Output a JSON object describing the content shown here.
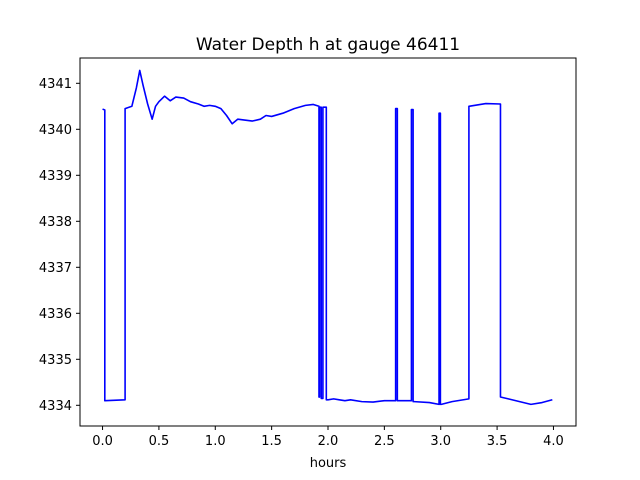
{
  "chart_data": {
    "type": "line",
    "title": "Water Depth h at gauge 46411",
    "xlabel": "hours",
    "ylabel": "",
    "xlim": [
      -0.2,
      4.2
    ],
    "ylim": [
      4333.55,
      4341.55
    ],
    "x_ticks": [
      0.0,
      0.5,
      1.0,
      1.5,
      2.0,
      2.5,
      3.0,
      3.5,
      4.0
    ],
    "x_tick_labels": [
      "0.0",
      "0.5",
      "1.0",
      "1.5",
      "2.0",
      "2.5",
      "3.0",
      "3.5",
      "4.0"
    ],
    "y_ticks": [
      4334,
      4335,
      4336,
      4337,
      4338,
      4339,
      4340,
      4341
    ],
    "y_tick_labels": [
      "4334",
      "4335",
      "4336",
      "4337",
      "4338",
      "4339",
      "4340",
      "4341"
    ],
    "grid": false,
    "legend": "none",
    "series": [
      {
        "color": "#0000ff",
        "x": [
          0.0,
          0.02,
          0.02,
          0.2,
          0.2,
          0.26,
          0.3,
          0.33,
          0.36,
          0.4,
          0.44,
          0.47,
          0.5,
          0.55,
          0.6,
          0.65,
          0.72,
          0.78,
          0.85,
          0.9,
          0.95,
          1.0,
          1.05,
          1.1,
          1.15,
          1.2,
          1.26,
          1.33,
          1.4,
          1.45,
          1.5,
          1.6,
          1.7,
          1.8,
          1.87,
          1.92,
          1.92,
          1.925,
          1.925,
          1.94,
          1.94,
          1.955,
          1.955,
          1.985,
          1.985,
          1.995,
          1.995,
          2.0,
          2.05,
          2.1,
          2.15,
          2.2,
          2.3,
          2.4,
          2.5,
          2.6,
          2.6,
          2.615,
          2.615,
          2.625,
          2.625,
          2.74,
          2.74,
          2.755,
          2.755,
          2.765,
          2.765,
          2.9,
          2.985,
          2.985,
          2.997,
          2.997,
          3.005,
          3.005,
          3.1,
          3.25,
          3.25,
          3.4,
          3.53,
          3.53,
          3.6,
          3.7,
          3.8,
          3.9,
          3.99
        ],
        "y": [
          4340.44,
          4340.42,
          4334.1,
          4334.12,
          4340.45,
          4340.5,
          4340.9,
          4341.28,
          4340.95,
          4340.55,
          4340.22,
          4340.5,
          4340.6,
          4340.72,
          4340.62,
          4340.7,
          4340.68,
          4340.6,
          4340.55,
          4340.5,
          4340.52,
          4340.5,
          4340.45,
          4340.3,
          4340.12,
          4340.22,
          4340.2,
          4340.18,
          4340.22,
          4340.3,
          4340.28,
          4340.35,
          4340.45,
          4340.52,
          4340.54,
          4340.5,
          4334.18,
          4334.18,
          4340.48,
          4340.48,
          4334.15,
          4334.15,
          4340.48,
          4340.48,
          4334.12,
          4334.12,
          4334.12,
          4334.12,
          4334.14,
          4334.12,
          4334.1,
          4334.12,
          4334.08,
          4334.07,
          4334.1,
          4334.1,
          4340.45,
          4340.45,
          4334.1,
          4334.1,
          4334.1,
          4334.1,
          4340.43,
          4340.43,
          4334.08,
          4334.08,
          4334.08,
          4334.06,
          4334.02,
          4340.35,
          4340.35,
          4334.02,
          4334.02,
          4334.02,
          4334.08,
          4334.14,
          4340.5,
          4340.56,
          4340.55,
          4334.18,
          4334.14,
          4334.08,
          4334.02,
          4334.06,
          4334.12
        ]
      }
    ]
  }
}
